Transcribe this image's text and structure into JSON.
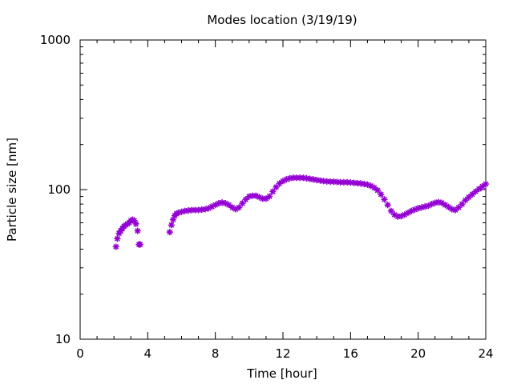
{
  "chart_data": {
    "type": "scatter",
    "title": "Modes location (3/19/19)",
    "xlabel": "Time [hour]",
    "ylabel": "Particle size [nm]",
    "xlim": [
      0,
      24
    ],
    "ylim": [
      10,
      1000
    ],
    "yscale": "log",
    "xticks": [
      0,
      4,
      8,
      12,
      16,
      20,
      24
    ],
    "xtick_labels": [
      "0",
      "4",
      "8",
      "12",
      "16",
      "20",
      "24"
    ],
    "yticks": [
      10,
      100,
      1000
    ],
    "ytick_labels": [
      "10",
      "100",
      "1000"
    ],
    "grid": false,
    "legend": "none",
    "marker_color": "#9400d3",
    "marker_shape": "asterisk",
    "series": [
      {
        "x": [
          2.12,
          2.2,
          2.3,
          2.4,
          2.5,
          2.6,
          2.7,
          2.8,
          2.9,
          3.0,
          3.1,
          3.2,
          3.3,
          3.4,
          3.48,
          3.55,
          5.3,
          5.4,
          5.5,
          5.6,
          5.7,
          5.8,
          6.0,
          6.2,
          6.4,
          6.6,
          6.8,
          7.0,
          7.2,
          7.4,
          7.6,
          7.8,
          8.0,
          8.2,
          8.4,
          8.6,
          8.8,
          9.0,
          9.2,
          9.4,
          9.6,
          9.8,
          10.0,
          10.2,
          10.4,
          10.6,
          10.8,
          11.0,
          11.2,
          11.4,
          11.6,
          11.8,
          12.0,
          12.2,
          12.4,
          12.6,
          12.8,
          13.0,
          13.2,
          13.4,
          13.6,
          13.8,
          14.0,
          14.2,
          14.4,
          14.6,
          14.8,
          15.0,
          15.2,
          15.4,
          15.6,
          15.8,
          16.0,
          16.2,
          16.4,
          16.6,
          16.8,
          17.0,
          17.2,
          17.4,
          17.6,
          17.8,
          18.0,
          18.2,
          18.4,
          18.6,
          18.8,
          19.0,
          19.2,
          19.4,
          19.6,
          19.8,
          20.0,
          20.2,
          20.4,
          20.6,
          20.8,
          21.0,
          21.2,
          21.4,
          21.6,
          21.8,
          22.0,
          22.2,
          22.4,
          22.6,
          22.8,
          23.0,
          23.2,
          23.4,
          23.6,
          23.8,
          24.0
        ],
        "y": [
          41.5,
          47,
          51,
          53,
          55,
          57,
          58,
          59,
          60,
          62,
          63,
          62,
          59,
          53,
          43,
          43,
          52,
          58,
          63,
          67,
          69,
          70,
          71,
          72,
          72.5,
          73,
          73,
          73,
          73.5,
          74,
          75,
          77,
          79,
          81,
          82,
          81,
          79,
          76,
          74,
          76,
          81,
          86,
          90,
          91,
          91,
          89,
          87,
          87,
          90,
          97,
          104,
          110,
          114,
          117,
          119,
          120,
          120,
          120,
          120,
          119,
          118,
          117,
          116,
          115,
          114,
          113.5,
          113,
          113,
          112.5,
          112,
          112,
          112,
          111.5,
          111,
          110.5,
          110,
          109,
          108,
          106,
          103,
          99,
          93,
          86,
          79,
          72,
          68,
          66,
          66.5,
          68,
          70,
          72,
          73.5,
          75,
          76,
          77,
          78,
          80,
          81.5,
          82.5,
          81.5,
          79,
          76.5,
          74,
          73,
          76,
          80,
          85,
          89,
          93,
          97,
          101,
          105,
          109
        ]
      }
    ]
  }
}
